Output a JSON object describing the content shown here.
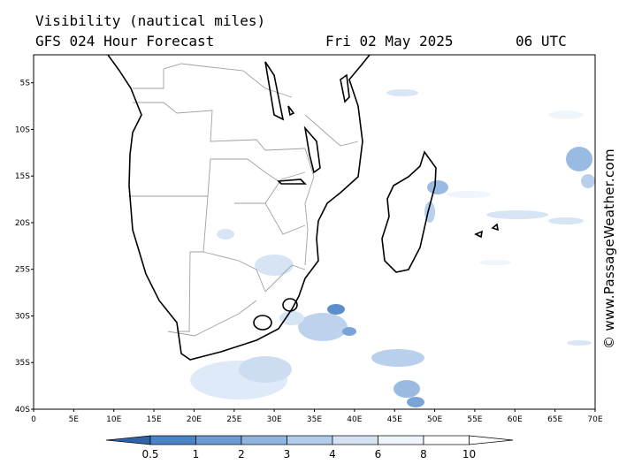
{
  "header": {
    "title": "Visibility (nautical miles)",
    "subtitle": "GFS 024 Hour Forecast",
    "date": "Fri 02 May 2025",
    "time": "06 UTC"
  },
  "credit": "© www.PassageWeather.com",
  "map": {
    "lon_range": [
      0,
      70
    ],
    "lat_range": [
      -2,
      -40
    ],
    "lon_ticks": [
      "0",
      "5E",
      "10E",
      "15E",
      "20E",
      "25E",
      "30E",
      "35E",
      "40E",
      "45E",
      "50E",
      "55E",
      "60E",
      "65E",
      "70E"
    ],
    "lat_ticks": [
      "5S",
      "10S",
      "15S",
      "20S",
      "25S",
      "30S",
      "35S",
      "40S"
    ],
    "colors": {
      "coastline": "#000000",
      "borders": "#a0a0a0",
      "low_visibility": "#3f7fc4",
      "moderate_visibility": "#9dbfe6",
      "high_visibility": "#dbe8f7"
    }
  },
  "colorbar": {
    "labels": [
      "0.5",
      "1",
      "2",
      "3",
      "4",
      "6",
      "8",
      "10"
    ],
    "colors": [
      "#2e63a8",
      "#4a82c6",
      "#6c9bd3",
      "#8fb4df",
      "#b2cbea",
      "#d3e2f3",
      "#eef4fb",
      "#ffffff",
      "#ffffff"
    ]
  }
}
